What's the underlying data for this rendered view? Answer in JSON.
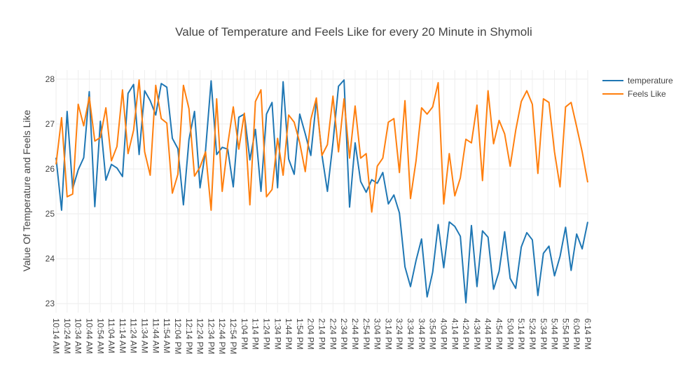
{
  "chart_data": {
    "type": "line",
    "title": "Value of Temperature and Feels Like for every 20 Minute in Shymoli",
    "xlabel": "",
    "ylabel": "Value Of Temperature and Feels Like",
    "x_start": "10:14 AM",
    "x_end": "6:14 PM",
    "x_step_minutes": 5,
    "tick_labels": [
      "10:14 AM",
      "10:24 AM",
      "10:34 AM",
      "10:44 AM",
      "10:54 AM",
      "11:04 AM",
      "11:14 AM",
      "11:24 AM",
      "11:34 AM",
      "11:44 AM",
      "11:54 AM",
      "12:04 PM",
      "12:14 PM",
      "12:24 PM",
      "12:34 PM",
      "12:44 PM",
      "12:54 PM",
      "1:04 PM",
      "1:14 PM",
      "1:24 PM",
      "1:34 PM",
      "1:44 PM",
      "1:54 PM",
      "2:04 PM",
      "2:14 PM",
      "2:24 PM",
      "2:34 PM",
      "2:44 PM",
      "2:54 PM",
      "3:04 PM",
      "3:14 PM",
      "3:24 PM",
      "3:34 PM",
      "3:44 PM",
      "3:54 PM",
      "4:04 PM",
      "4:14 PM",
      "4:24 PM",
      "4:34 PM",
      "4:44 PM",
      "4:54 PM",
      "5:04 PM",
      "5:14 PM",
      "5:24 PM",
      "5:34 PM",
      "5:44 PM",
      "5:54 PM",
      "6:04 PM",
      "6:14 PM"
    ],
    "y_ticks": [
      23,
      24,
      25,
      26,
      27,
      28
    ],
    "ylim": [
      22.8,
      28.2
    ],
    "grid": true,
    "legend_position": "top-right",
    "series": [
      {
        "name": "temperature",
        "color": "#1f77b4",
        "values": [
          26.25,
          25.08,
          27.28,
          25.56,
          25.98,
          26.25,
          27.72,
          25.16,
          27.06,
          25.75,
          26.1,
          26.02,
          25.83,
          27.68,
          27.88,
          26.32,
          27.74,
          27.52,
          27.2,
          27.9,
          27.82,
          26.68,
          26.45,
          25.2,
          26.65,
          27.28,
          25.58,
          26.42,
          27.96,
          26.32,
          26.48,
          26.44,
          25.6,
          27.15,
          27.22,
          26.2,
          26.88,
          25.5,
          27.22,
          27.48,
          25.58,
          27.94,
          26.22,
          25.88,
          27.22,
          26.78,
          26.3,
          27.52,
          26.32,
          25.5,
          26.58,
          27.84,
          27.98,
          25.15,
          26.58,
          25.72,
          25.48,
          25.76,
          25.68,
          25.92,
          25.22,
          25.42,
          25.02,
          23.82,
          23.38,
          23.96,
          24.44,
          23.15,
          23.7,
          24.76,
          23.8,
          24.82,
          24.72,
          24.5,
          23.02,
          24.74,
          23.38,
          24.62,
          24.48,
          23.32,
          23.72,
          24.6,
          23.56,
          23.34,
          24.26,
          24.58,
          24.42,
          23.18,
          24.12,
          24.28,
          23.62,
          24.05,
          24.7,
          23.74,
          24.55,
          24.22,
          24.82
        ]
      },
      {
        "name": "Feels Like",
        "color": "#ff7f0e",
        "values": [
          26.1,
          27.14,
          25.38,
          25.44,
          27.44,
          26.96,
          27.6,
          26.62,
          26.7,
          27.36,
          26.18,
          26.5,
          27.76,
          26.34,
          26.86,
          27.98,
          26.38,
          25.86,
          27.86,
          27.12,
          27.02,
          25.46,
          25.88,
          27.86,
          27.34,
          25.84,
          26.04,
          26.38,
          25.08,
          27.56,
          25.5,
          26.54,
          27.38,
          26.44,
          27.24,
          25.2,
          27.5,
          27.76,
          25.38,
          25.54,
          26.68,
          25.86,
          27.2,
          27.04,
          26.58,
          25.94,
          27.1,
          27.58,
          26.3,
          26.54,
          27.62,
          26.38,
          27.56,
          26.24,
          27.4,
          26.24,
          26.34,
          25.04,
          26.06,
          26.24,
          27.04,
          27.12,
          25.92,
          27.52,
          25.34,
          26.18,
          27.36,
          27.22,
          27.38,
          27.92,
          25.22,
          26.34,
          25.4,
          25.8,
          26.66,
          26.58,
          27.42,
          25.74,
          27.74,
          26.56,
          27.08,
          26.78,
          26.06,
          26.86,
          27.5,
          27.74,
          27.44,
          25.9,
          27.56,
          27.48,
          26.38,
          25.6,
          27.38,
          27.48,
          26.94,
          26.38,
          25.7
        ]
      }
    ]
  }
}
